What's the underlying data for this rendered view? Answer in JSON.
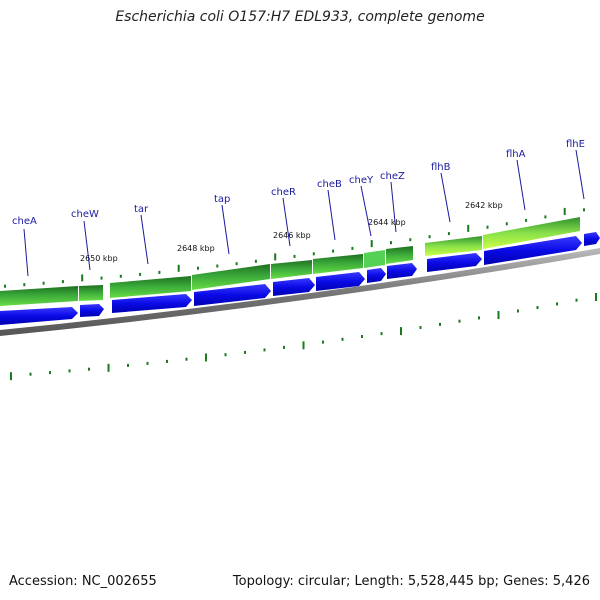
{
  "header": {
    "title": "Escherichia coli O157:H7 EDL933, complete genome"
  },
  "footer": {
    "accession": "Accession: NC_002655",
    "stats": "Topology: circular; Length: 5,528,445 bp; Genes: 5,426"
  },
  "colors": {
    "cds_blue": "#0a0ae6",
    "gene_green_dark": "#1f7a1f",
    "gene_green_light": "#66dd44",
    "gene_yellow": "#ccff44",
    "backbone": "#888888",
    "tick": "#1b7a1b",
    "label": "#1a1aa0"
  },
  "gene_labels": [
    "cheA",
    "cheW",
    "tar",
    "tap",
    "cheR",
    "cheB",
    "cheY",
    "cheZ",
    "flhB",
    "flhA",
    "flhE"
  ],
  "kbp_labels": [
    "2650 kbp",
    "2648 kbp",
    "2646 kbp",
    "2644 kbp",
    "2642 kbp"
  ]
}
